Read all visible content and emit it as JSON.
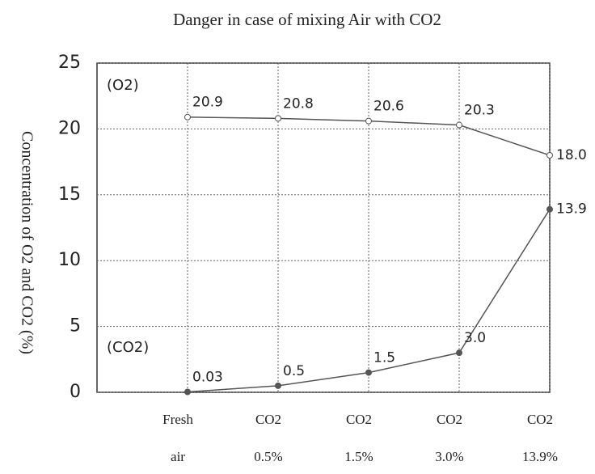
{
  "chart_data": {
    "type": "line",
    "title": "Danger in case of mixing Air with CO2",
    "y_label": "Concentration of O2 and CO2 (%)",
    "categories": [
      [
        "Fresh",
        "air"
      ],
      [
        "CO2",
        "0.5%"
      ],
      [
        "CO2",
        "1.5%"
      ],
      [
        "CO2",
        "3.0%"
      ],
      [
        "CO2",
        "13.9%"
      ]
    ],
    "series": [
      {
        "name": "(O2)",
        "color": "#555555",
        "values": [
          20.9,
          20.8,
          20.6,
          20.3,
          18
        ],
        "value_labels": [
          "20.9",
          "20.8",
          "20.6",
          "20.3",
          "18.0"
        ]
      },
      {
        "name": "(CO2)",
        "color": "#555555",
        "values": [
          0.03,
          0.5,
          1.5,
          3,
          13.9
        ],
        "value_labels": [
          "0.03",
          "0.5",
          "1.5",
          "3.0",
          "13.9"
        ]
      }
    ],
    "ylim": [
      0,
      25
    ],
    "yticks": [
      0,
      5,
      10,
      15,
      20,
      25
    ],
    "grid": true
  }
}
